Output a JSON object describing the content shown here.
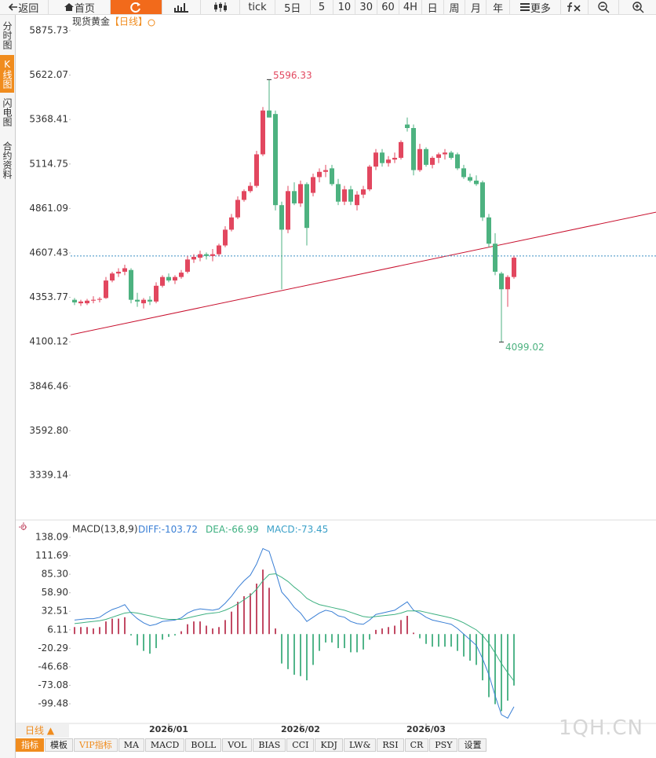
{
  "toolbar": {
    "back": "返回",
    "home": "首页",
    "tick": "tick",
    "periods": [
      "5日",
      "5",
      "10",
      "30",
      "60",
      "4H",
      "日",
      "周",
      "月",
      "年"
    ],
    "more": "更多"
  },
  "side_tabs": {
    "items": [
      "分时图",
      "K线图",
      "闪电图",
      "合约资料"
    ],
    "active": 1
  },
  "chart_data": [
    {
      "type": "candlestick",
      "title": "现货黄金",
      "subtitle": "【日线】",
      "up_color": "#e2475f",
      "down_color": "#4db280",
      "open": [
        4340,
        4320,
        4320,
        4335,
        4340,
        4350,
        4450,
        4490,
        4500,
        4510,
        4340,
        4320,
        4340,
        4330,
        4420,
        4470,
        4450,
        4470,
        4500,
        4570,
        4580,
        4600,
        4590,
        4600,
        4650,
        4740,
        4810,
        4910,
        4960,
        4990,
        5170,
        5420,
        5400,
        4880,
        4740,
        4960,
        4890,
        5000,
        4950,
        5040,
        5070,
        5090,
        5000,
        4900,
        4970,
        4880,
        4940,
        4970,
        5100,
        5180,
        5120,
        5140,
        5150,
        5340,
        5320,
        5080,
        5200,
        5110,
        5150,
        5170,
        5180,
        5170,
        5090,
        5040,
        5020,
        5010,
        4810,
        4660,
        4490,
        4400,
        4470
      ],
      "high": [
        4350,
        4340,
        4345,
        4360,
        4355,
        4470,
        4500,
        4520,
        4540,
        4520,
        4380,
        4350,
        4360,
        4440,
        4480,
        4490,
        4480,
        4510,
        4590,
        4600,
        4620,
        4610,
        4630,
        4660,
        4760,
        4830,
        4930,
        4970,
        5010,
        5190,
        5440,
        5596.33,
        5420,
        4900,
        4990,
        5010,
        5020,
        5010,
        5060,
        5090,
        5110,
        5110,
        5030,
        4990,
        4990,
        4960,
        4990,
        5110,
        5200,
        5200,
        5160,
        5180,
        5250,
        5380,
        5340,
        5230,
        5210,
        5160,
        5180,
        5200,
        5190,
        5180,
        5110,
        5060,
        5050,
        5020,
        4830,
        4720,
        4500,
        4480,
        4590
      ],
      "low": [
        4310,
        4305,
        4310,
        4320,
        4325,
        4345,
        4440,
        4470,
        4480,
        4320,
        4300,
        4290,
        4310,
        4320,
        4410,
        4440,
        4430,
        4460,
        4490,
        4550,
        4560,
        4570,
        4560,
        4590,
        4640,
        4730,
        4800,
        4900,
        4950,
        4980,
        5160,
        5380,
        4850,
        4400,
        4720,
        4880,
        4870,
        4650,
        4930,
        5010,
        5040,
        4990,
        4880,
        4880,
        4880,
        4850,
        4920,
        4960,
        5080,
        5100,
        5100,
        5120,
        5140,
        5300,
        5050,
        5070,
        5100,
        5090,
        5120,
        5140,
        5140,
        5080,
        5030,
        5010,
        4990,
        4790,
        4640,
        4480,
        4099.02,
        4300,
        4460
      ],
      "close": [
        4325,
        4330,
        4335,
        4340,
        4345,
        4450,
        4490,
        4500,
        4520,
        4340,
        4330,
        4340,
        4330,
        4420,
        4470,
        4450,
        4470,
        4495,
        4570,
        4585,
        4600,
        4590,
        4600,
        4650,
        4740,
        4810,
        4910,
        4960,
        4990,
        5170,
        5420,
        5380,
        4880,
        4740,
        4960,
        4890,
        5000,
        4750,
        5040,
        5070,
        5080,
        5000,
        4900,
        4970,
        4900,
        4940,
        4970,
        5100,
        5180,
        5120,
        5140,
        5150,
        5240,
        5320,
        5080,
        5200,
        5110,
        5150,
        5170,
        5180,
        5150,
        5090,
        5040,
        5020,
        5000,
        4810,
        4660,
        4500,
        4400,
        4470,
        4580
      ],
      "ylim": [
        3092.4,
        5969.9
      ],
      "yticks": [
        {
          "value": 5875.73,
          "label": "5875.73"
        },
        {
          "value": 5622.07,
          "label": "5622.07"
        },
        {
          "value": 5368.41,
          "label": "5368.41"
        },
        {
          "value": 5114.75,
          "label": "5114.75"
        },
        {
          "value": 4861.09,
          "label": "4861.09"
        },
        {
          "value": 4607.43,
          "label": "4607.43"
        },
        {
          "value": 4353.77,
          "label": "4353.77"
        },
        {
          "value": 4100.12,
          "label": "4100.12"
        },
        {
          "value": 3846.46,
          "label": "3846.46"
        },
        {
          "value": 3592.8,
          "label": "3592.80"
        },
        {
          "value": 3339.14,
          "label": "3339.14"
        }
      ],
      "xticks": [
        {
          "value": 15,
          "label": "2026/01"
        },
        {
          "value": 36,
          "label": "2026/02"
        },
        {
          "value": 56,
          "label": "2026/03"
        }
      ],
      "trendline": [
        4145,
        4670
      ],
      "last_price": 4590
    },
    {
      "type": "macd",
      "title": "MACD(13,8,9)",
      "series": [
        {
          "name": "DIFF:",
          "color": "#3a7fd5",
          "values": [
            20,
            21,
            22,
            22,
            24,
            30,
            35,
            38,
            42,
            30,
            22,
            16,
            12,
            14,
            18,
            19,
            20,
            23,
            30,
            34,
            36,
            35,
            34,
            36,
            44,
            54,
            66,
            76,
            84,
            100,
            122,
            118,
            90,
            60,
            50,
            38,
            30,
            18,
            24,
            30,
            34,
            32,
            26,
            24,
            18,
            15,
            14,
            20,
            28,
            30,
            32,
            34,
            40,
            46,
            34,
            30,
            24,
            20,
            18,
            16,
            14,
            8,
            0,
            -8,
            -16,
            -35,
            -58,
            -88,
            -115,
            -120,
            -103.72
          ]
        },
        {
          "name": "DEA:",
          "color": "#3db080",
          "values": [
            15,
            16,
            17,
            18,
            19,
            21,
            24,
            27,
            30,
            31,
            30,
            28,
            26,
            24,
            22,
            21,
            21,
            21,
            23,
            25,
            27,
            29,
            30,
            31,
            34,
            38,
            43,
            49,
            55,
            64,
            76,
            85,
            86,
            81,
            75,
            67,
            60,
            51,
            46,
            42,
            40,
            38,
            36,
            34,
            31,
            28,
            25,
            24,
            25,
            26,
            27,
            28,
            30,
            33,
            33,
            33,
            31,
            29,
            27,
            25,
            23,
            20,
            16,
            11,
            6,
            -2,
            -13,
            -27,
            -42,
            -55,
            -66.99
          ]
        },
        {
          "name": "MACD:",
          "color": "#3aa0c8",
          "up_color": "#c24a64",
          "down_color": "#52b58a",
          "values": [
            10,
            10,
            10,
            8,
            10,
            18,
            22,
            22,
            24,
            -2,
            -16,
            -24,
            -28,
            -20,
            -8,
            -4,
            -2,
            4,
            14,
            18,
            18,
            12,
            8,
            10,
            20,
            32,
            46,
            54,
            58,
            72,
            92,
            66,
            8,
            -42,
            -50,
            -58,
            -60,
            -66,
            -44,
            -24,
            -12,
            -12,
            -20,
            -20,
            -26,
            -26,
            -22,
            -8,
            6,
            8,
            10,
            12,
            20,
            26,
            2,
            -6,
            -14,
            -18,
            -18,
            -18,
            -18,
            -24,
            -32,
            -38,
            -44,
            -66,
            -90,
            -100,
            -110,
            -95,
            -73.45
          ]
        }
      ],
      "ylim": [
        -132,
        159.4
      ],
      "yticks": [
        {
          "value": 138.09,
          "label": "138.09"
        },
        {
          "value": 111.69,
          "label": "111.69"
        },
        {
          "value": 85.3,
          "label": "85.30"
        },
        {
          "value": 58.9,
          "label": "58.90"
        },
        {
          "value": 32.51,
          "label": "32.51"
        },
        {
          "value": 6.11,
          "label": "6.11"
        },
        {
          "value": -20.29,
          "label": "-20.29"
        },
        {
          "value": -46.68,
          "label": "-46.68"
        },
        {
          "value": -73.08,
          "label": "-73.08"
        },
        {
          "value": -99.48,
          "label": "-99.48"
        }
      ]
    }
  ],
  "period_selector": "日线",
  "indicator_tabs": {
    "items": [
      "指标",
      "模板",
      "VIP指标",
      "MA",
      "MACD",
      "BOLL",
      "VOL",
      "BIAS",
      "CCI",
      "KDJ",
      "LW&",
      "RSI",
      "CR",
      "PSY",
      "设置"
    ],
    "active": 0,
    "vip": 2
  },
  "watermark": "1QH.CN"
}
